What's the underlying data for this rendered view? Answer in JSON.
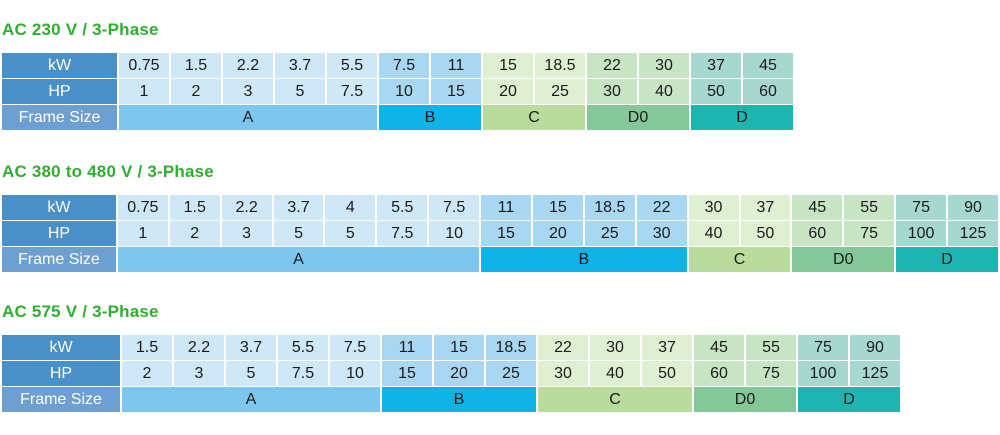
{
  "sections": [
    {
      "title": "AC 230 V / 3-Phase",
      "row_labels": {
        "kw": "kW",
        "hp": "HP",
        "frame": "Frame Size"
      },
      "groups": [
        {
          "frame": "A",
          "kw": [
            "0.75",
            "1.5",
            "2.2",
            "3.7",
            "5.5"
          ],
          "hp": [
            "1",
            "2",
            "3",
            "5",
            "7.5"
          ]
        },
        {
          "frame": "B",
          "kw": [
            "7.5",
            "11"
          ],
          "hp": [
            "10",
            "15"
          ]
        },
        {
          "frame": "C",
          "kw": [
            "15",
            "18.5"
          ],
          "hp": [
            "20",
            "25"
          ]
        },
        {
          "frame": "D0",
          "kw": [
            "22",
            "30"
          ],
          "hp": [
            "30",
            "40"
          ]
        },
        {
          "frame": "D",
          "kw": [
            "37",
            "45"
          ],
          "hp": [
            "50",
            "60"
          ]
        }
      ]
    },
    {
      "title": "AC 380 to 480 V / 3-Phase",
      "row_labels": {
        "kw": "kW",
        "hp": "HP",
        "frame": "Frame Size"
      },
      "groups": [
        {
          "frame": "A",
          "kw": [
            "0.75",
            "1.5",
            "2.2",
            "3.7",
            "4",
            "5.5",
            "7.5"
          ],
          "hp": [
            "1",
            "2",
            "3",
            "5",
            "5",
            "7.5",
            "10"
          ]
        },
        {
          "frame": "B",
          "kw": [
            "11",
            "15",
            "18.5",
            "22"
          ],
          "hp": [
            "15",
            "20",
            "25",
            "30"
          ]
        },
        {
          "frame": "C",
          "kw": [
            "30",
            "37"
          ],
          "hp": [
            "40",
            "50"
          ]
        },
        {
          "frame": "D0",
          "kw": [
            "45",
            "55"
          ],
          "hp": [
            "60",
            "75"
          ]
        },
        {
          "frame": "D",
          "kw": [
            "75",
            "90"
          ],
          "hp": [
            "100",
            "125"
          ]
        }
      ]
    },
    {
      "title": "AC 575 V / 3-Phase",
      "row_labels": {
        "kw": "kW",
        "hp": "HP",
        "frame": "Frame Size"
      },
      "groups": [
        {
          "frame": "A",
          "kw": [
            "1.5",
            "2.2",
            "3.7",
            "5.5",
            "7.5"
          ],
          "hp": [
            "2",
            "3",
            "5",
            "7.5",
            "10"
          ]
        },
        {
          "frame": "B",
          "kw": [
            "11",
            "15",
            "18.5"
          ],
          "hp": [
            "15",
            "20",
            "25"
          ]
        },
        {
          "frame": "C",
          "kw": [
            "22",
            "30",
            "37"
          ],
          "hp": [
            "30",
            "40",
            "50"
          ]
        },
        {
          "frame": "D0",
          "kw": [
            "45",
            "55"
          ],
          "hp": [
            "60",
            "75"
          ]
        },
        {
          "frame": "D",
          "kw": [
            "75",
            "90"
          ],
          "hp": [
            "100",
            "125"
          ]
        }
      ]
    }
  ],
  "colors": {
    "title": "#2fae2f",
    "row_header": "#4a90c8",
    "frame_A": "#7dc7ef",
    "frame_B": "#10b3e6",
    "frame_C": "#b9dc9c",
    "frame_D0": "#84c89a",
    "frame_D": "#1eb5b0"
  }
}
